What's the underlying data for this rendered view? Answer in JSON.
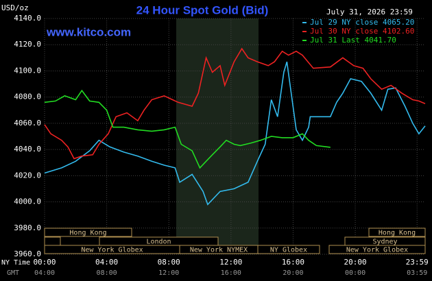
{
  "chart_data": {
    "type": "line",
    "title": "24 Hour Spot Gold (Bid)",
    "y_label": "USD/oz",
    "source": "www.kitco.com",
    "timestamp": "July 31, 2026 23:59",
    "x_label": "NY Time",
    "x2_label": "GMT",
    "xlim": [
      0,
      24.5
    ],
    "xticks": [
      {
        "value": 0,
        "label": "00:00"
      },
      {
        "value": 4,
        "label": "04:00"
      },
      {
        "value": 8,
        "label": "08:00"
      },
      {
        "value": 12,
        "label": "12:00"
      },
      {
        "value": 16,
        "label": "16:00"
      },
      {
        "value": 20,
        "label": "20:00"
      },
      {
        "value": 23.98,
        "label": "23:59"
      }
    ],
    "x2ticks": [
      {
        "value": 0,
        "label": "04:00"
      },
      {
        "value": 4,
        "label": "08:00"
      },
      {
        "value": 8,
        "label": "12:00"
      },
      {
        "value": 12,
        "label": "16:00"
      },
      {
        "value": 16,
        "label": "20:00"
      },
      {
        "value": 20,
        "label": "00:00"
      },
      {
        "value": 23.98,
        "label": "03:59"
      }
    ],
    "ylim": [
      3960,
      4140
    ],
    "yticks": [
      {
        "value": 3960,
        "label": "3960.0"
      },
      {
        "value": 3980,
        "label": "3980.0"
      },
      {
        "value": 4000,
        "label": "4000.0"
      },
      {
        "value": 4020,
        "label": "4020.0"
      },
      {
        "value": 4040,
        "label": "4040.0"
      },
      {
        "value": 4060,
        "label": "4060.0"
      },
      {
        "value": 4080,
        "label": "4080.0"
      },
      {
        "value": 4100,
        "label": "4100.0"
      },
      {
        "value": 4120,
        "label": "4120.0"
      },
      {
        "value": 4140,
        "label": "4140.0"
      }
    ],
    "grid": true,
    "sessions": [
      "Hong Kong",
      "Hong Kong",
      "London",
      "Sydney",
      "New York Globex",
      "New York NYMEX",
      "NY Globex",
      "New York Globex"
    ],
    "series": [
      {
        "name": "Jul 29 NY close 4065.20",
        "color": "#33bbee",
        "x": [
          0,
          1.1,
          2.0,
          2.9,
          3.5,
          4.2,
          5.1,
          6.0,
          6.9,
          7.7,
          8.4,
          8.7,
          9.5,
          10.2,
          10.5,
          11.3,
          12.2,
          13.1,
          13.7,
          14.2,
          14.6,
          15.0,
          15.4,
          15.6,
          15.9,
          16.2,
          16.6,
          17.0,
          17.1,
          18.4,
          18.8,
          19.2,
          19.7,
          20.4,
          21.0,
          21.7,
          22.1,
          22.6,
          23.2,
          23.7,
          24.1,
          24.5
        ],
        "values": [
          4022,
          4026,
          4031,
          4039,
          4047,
          4042,
          4038,
          4035,
          4031,
          4028,
          4026,
          4015,
          4021,
          4008,
          3998,
          4008,
          4010,
          4015,
          4031,
          4044,
          4078,
          4065,
          4099,
          4107,
          4081,
          4055,
          4047,
          4057,
          4065,
          4065,
          4076,
          4083,
          4094,
          4092,
          4083,
          4070,
          4086,
          4087,
          4073,
          4060,
          4052,
          4058
        ]
      },
      {
        "name": "Jul 30 NY close 4102.60",
        "color": "#ee2222",
        "x": [
          0,
          0.4,
          1.1,
          1.5,
          1.9,
          2.4,
          3.1,
          3.5,
          4.1,
          4.6,
          5.3,
          6.0,
          6.4,
          6.9,
          7.7,
          8.6,
          9.5,
          9.9,
          10.4,
          10.8,
          11.3,
          11.6,
          12.2,
          12.7,
          13.1,
          13.7,
          14.4,
          14.8,
          15.3,
          15.7,
          16.2,
          16.6,
          17.3,
          18.4,
          19.2,
          19.9,
          20.5,
          21.0,
          21.7,
          22.3,
          23.0,
          23.7,
          24.1,
          24.5
        ],
        "values": [
          4059,
          4052,
          4047,
          4042,
          4033,
          4035,
          4036,
          4044,
          4052,
          4065,
          4068,
          4062,
          4070,
          4078,
          4081,
          4076,
          4073,
          4083,
          4110,
          4099,
          4104,
          4089,
          4107,
          4117,
          4110,
          4107,
          4104,
          4107,
          4115,
          4112,
          4115,
          4112,
          4102,
          4103,
          4110,
          4104,
          4102,
          4094,
          4086,
          4089,
          4083,
          4078,
          4077,
          4075
        ]
      },
      {
        "name": "Jul 31 Last 4041.70",
        "color": "#22dd22",
        "x": [
          0,
          0.7,
          1.3,
          2.0,
          2.4,
          2.9,
          3.5,
          4.0,
          4.4,
          5.1,
          6.0,
          6.9,
          7.7,
          8.4,
          8.8,
          9.5,
          10.0,
          10.4,
          10.8,
          11.3,
          11.7,
          12.2,
          12.6,
          13.3,
          13.9,
          14.6,
          15.3,
          16.0,
          16.6,
          17.0,
          17.5,
          18.4
        ],
        "values": [
          4076,
          4077,
          4081,
          4078,
          4085,
          4077,
          4076,
          4070,
          4057,
          4057,
          4055,
          4054,
          4055,
          4057,
          4044,
          4039,
          4026,
          4031,
          4036,
          4042,
          4047,
          4044,
          4043,
          4045,
          4047,
          4050,
          4049,
          4049,
          4052,
          4047,
          4043,
          4041.7
        ]
      }
    ]
  }
}
